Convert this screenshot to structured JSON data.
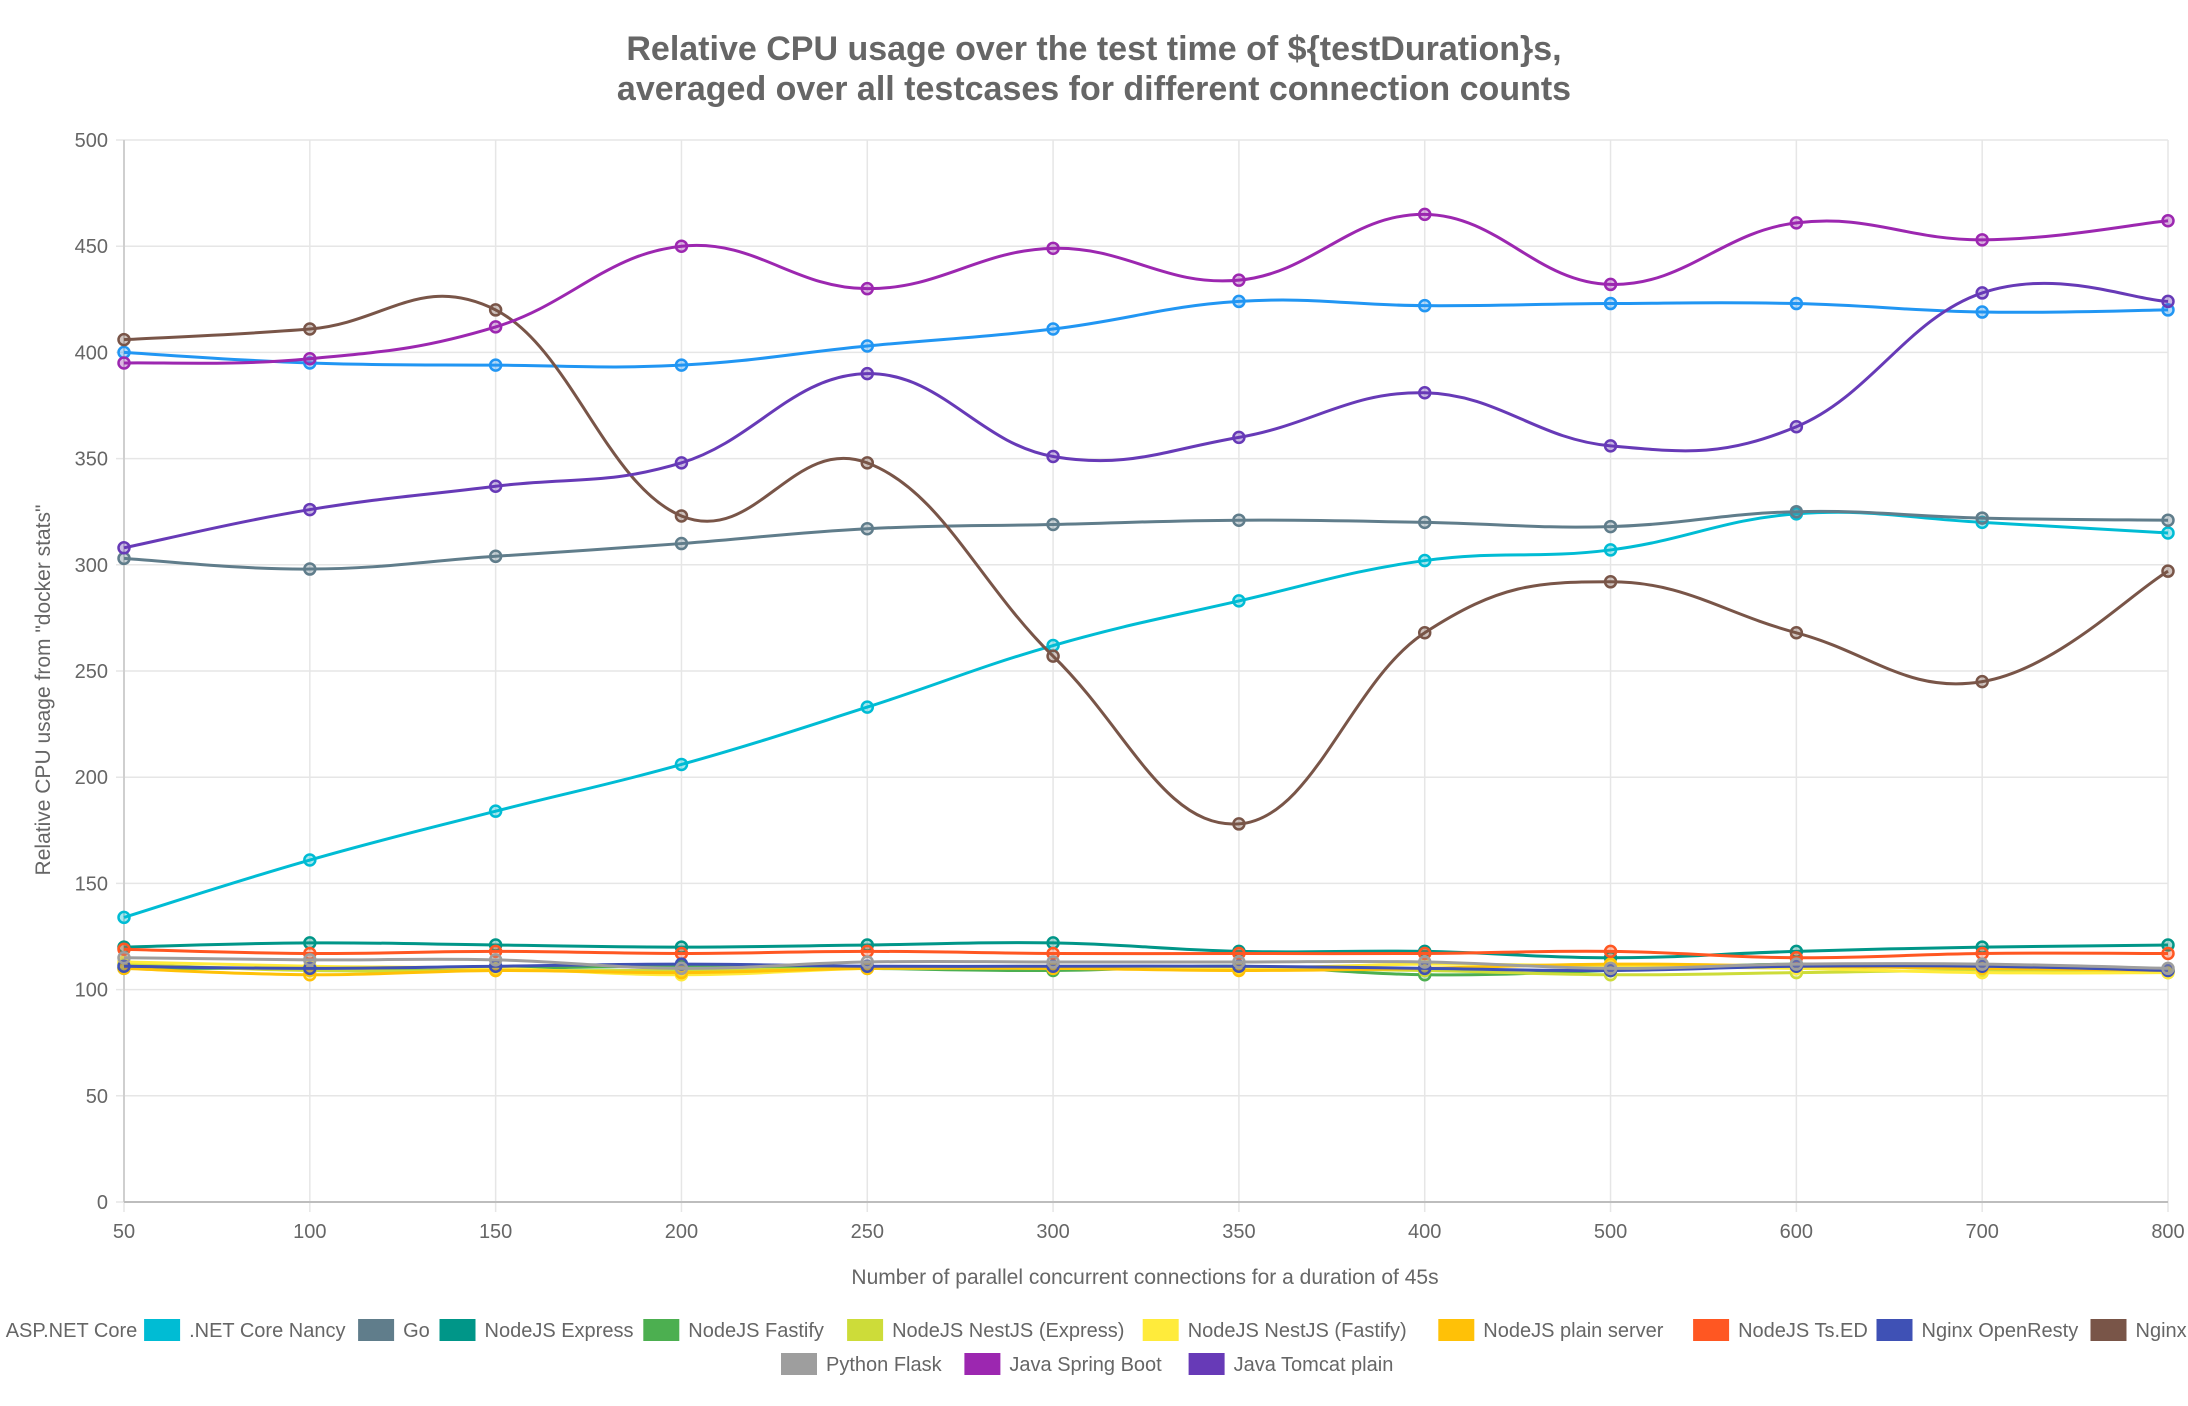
{
  "chart_data": {
    "type": "line",
    "title": [
      "Relative CPU usage over the test time of ${testDuration}s,",
      "averaged over all testcases for different connection counts"
    ],
    "xlabel": "Number of parallel concurrent connections for a duration of 45s",
    "ylabel": "Relative CPU usage from \"docker stats\"",
    "categories": [
      "50",
      "100",
      "150",
      "200",
      "250",
      "300",
      "350",
      "400",
      "500",
      "600",
      "700",
      "800"
    ],
    "ylim": [
      0,
      500
    ],
    "yticks": [
      "0",
      "50",
      "100",
      "150",
      "200",
      "250",
      "300",
      "350",
      "400",
      "450",
      "500"
    ],
    "grid": true,
    "legend_position": "bottom",
    "series": [
      {
        "name": "ASP.NET Core",
        "color": "#2196f3",
        "values": [
          400,
          395,
          394,
          394,
          403,
          411,
          424,
          422,
          423,
          423,
          419,
          420
        ]
      },
      {
        "name": ".NET Core Nancy",
        "color": "#00bcd4",
        "values": [
          134,
          161,
          184,
          206,
          233,
          262,
          283,
          302,
          307,
          324,
          320,
          315
        ]
      },
      {
        "name": "Go",
        "color": "#607d8b",
        "values": [
          303,
          298,
          304,
          310,
          317,
          319,
          321,
          320,
          318,
          325,
          322,
          321
        ]
      },
      {
        "name": "NodeJS Express",
        "color": "#009688",
        "values": [
          120,
          122,
          121,
          120,
          121,
          122,
          118,
          118,
          115,
          118,
          120,
          121
        ]
      },
      {
        "name": "NodeJS Fastify",
        "color": "#4caf50",
        "values": [
          110,
          110,
          110,
          111,
          110,
          109,
          111,
          107,
          109,
          112,
          110,
          109
        ]
      },
      {
        "name": "NodeJS NestJS (Express)",
        "color": "#cddc39",
        "values": [
          112,
          109,
          109,
          109,
          110,
          110,
          110,
          109,
          107,
          108,
          109,
          108
        ]
      },
      {
        "name": "NodeJS NestJS (Fastify)",
        "color": "#ffeb3b",
        "values": [
          113,
          111,
          110,
          107,
          110,
          111,
          110,
          112,
          111,
          110,
          108,
          108
        ]
      },
      {
        "name": "NodeJS plain server",
        "color": "#ffc107",
        "values": [
          110,
          107,
          109,
          108,
          110,
          110,
          109,
          110,
          112,
          111,
          110,
          109
        ]
      },
      {
        "name": "NodeJS Ts.ED",
        "color": "#ff5722",
        "values": [
          119,
          117,
          118,
          117,
          118,
          117,
          117,
          117,
          118,
          115,
          117,
          117
        ]
      },
      {
        "name": "Nginx OpenResty",
        "color": "#3f51b5",
        "values": [
          111,
          110,
          111,
          112,
          111,
          111,
          111,
          110,
          109,
          111,
          111,
          109
        ]
      },
      {
        "name": "Nginx PHP",
        "color": "#795548",
        "values": [
          406,
          411,
          420,
          323,
          348,
          257,
          178,
          268,
          292,
          268,
          245,
          297
        ]
      },
      {
        "name": "Python Flask",
        "color": "#9e9e9e",
        "values": [
          115,
          114,
          114,
          110,
          113,
          113,
          113,
          113,
          110,
          112,
          112,
          110
        ]
      },
      {
        "name": "Java Spring Boot",
        "color": "#9c27b0",
        "values": [
          395,
          397,
          412,
          450,
          430,
          449,
          434,
          465,
          432,
          461,
          453,
          462
        ]
      },
      {
        "name": "Java Tomcat plain",
        "color": "#673ab7",
        "values": [
          308,
          326,
          337,
          348,
          390,
          351,
          360,
          381,
          356,
          365,
          428,
          424
        ]
      }
    ]
  }
}
